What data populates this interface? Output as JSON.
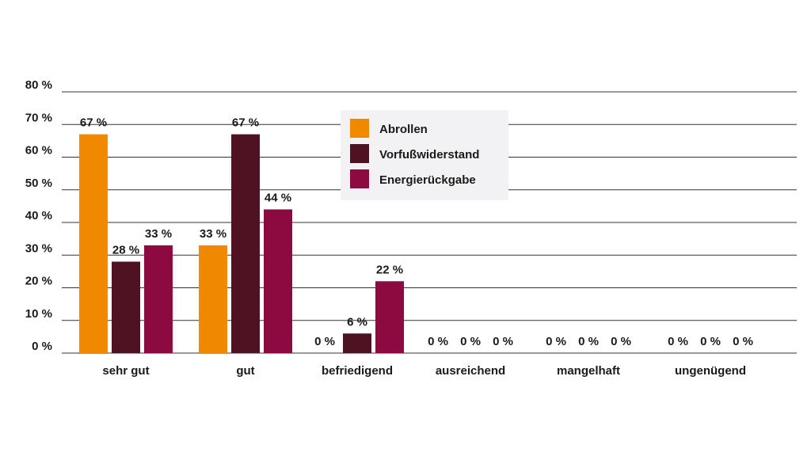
{
  "chart_data": {
    "type": "bar",
    "categories": [
      "sehr gut",
      "gut",
      "befriedigend",
      "ausreichend",
      "mangelhaft",
      "ungenügend"
    ],
    "series": [
      {
        "name": "Abrollen",
        "values": [
          67,
          33,
          0,
          0,
          0,
          0
        ],
        "labels": [
          "67 %",
          "33 %",
          "0 %",
          "0 %",
          "0 %",
          "0 %"
        ]
      },
      {
        "name": "Vorfußwiderstand",
        "values": [
          28,
          67,
          6,
          0,
          0,
          0
        ],
        "labels": [
          "28 %",
          "67 %",
          "6 %",
          "0 %",
          "0 %",
          "0 %"
        ]
      },
      {
        "name": "Energierückgabe",
        "values": [
          33,
          44,
          22,
          0,
          0,
          0
        ],
        "labels": [
          "33 %",
          "44 %",
          "22 %",
          "0 %",
          "0 %",
          "0 %"
        ]
      }
    ],
    "colors": [
      "#F08800",
      "#4E1222",
      "#8C0A3F"
    ],
    "yticks": [
      0,
      10,
      20,
      30,
      40,
      50,
      60,
      70,
      80
    ],
    "ytick_labels": [
      "0 %",
      "10 %",
      "20 %",
      "30 %",
      "40 %",
      "50 %",
      "60 %",
      "70 %",
      "80 %"
    ],
    "ylim": [
      0,
      80
    ],
    "grid": true,
    "legend_position": "top-center",
    "legend_background": "#F2F2F4",
    "title": "",
    "xlabel": "",
    "ylabel": ""
  }
}
